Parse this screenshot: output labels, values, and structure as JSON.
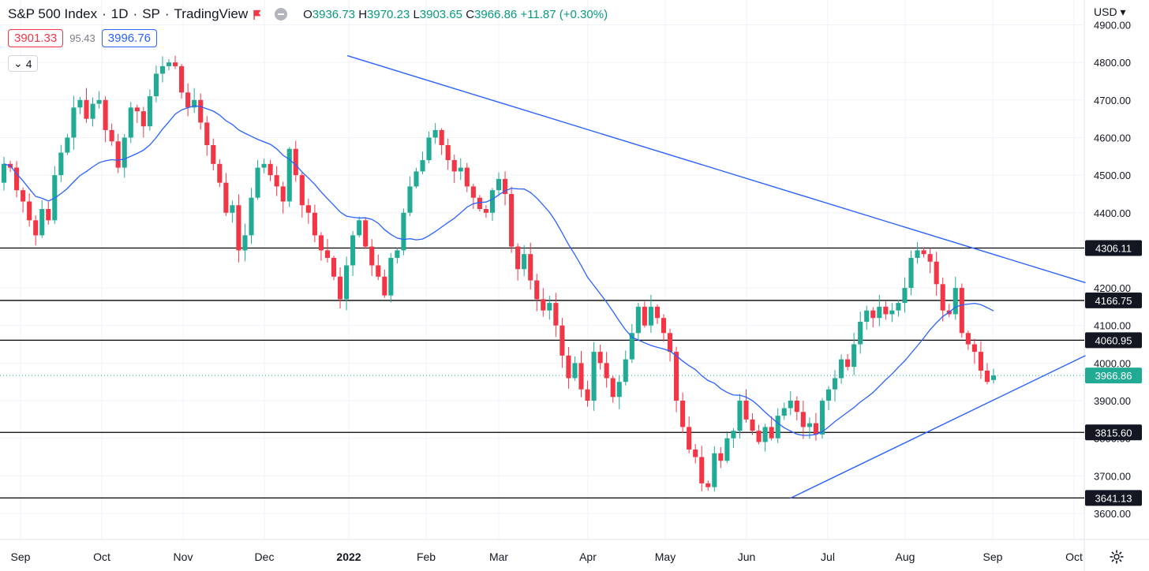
{
  "header": {
    "title": "S&P 500 Index",
    "interval": "1D",
    "exchange": "SP",
    "source": "TradingView",
    "open_label": "O",
    "open": "3936.73",
    "high_label": "H",
    "high": "3970.23",
    "low_label": "L",
    "low": "3903.65",
    "close_label": "C",
    "close": "3966.86",
    "change": "+11.87 (+0.30%)"
  },
  "quote": {
    "bid": "3901.33",
    "spread": "95.43",
    "ask": "3996.76"
  },
  "indicator_count": "4",
  "currency": "USD",
  "colors": {
    "up": "#22ab94",
    "down": "#f23645",
    "line": "#2962ff",
    "grid": "#f0f3fa"
  },
  "chart_data": {
    "type": "candlestick",
    "y_axis": {
      "range": [
        3580,
        4920
      ],
      "ticks": [
        "3600.00",
        "3700.00",
        "3800.00",
        "3900.00",
        "4000.00",
        "4100.00",
        "4200.00",
        "4300.00",
        "4400.00",
        "4500.00",
        "4600.00",
        "4700.00",
        "4800.00",
        "4900.00"
      ]
    },
    "x_axis": {
      "ticks": [
        "Sep",
        "Oct",
        "Nov",
        "Dec",
        "2022",
        "Feb",
        "Mar",
        "Apr",
        "May",
        "Jun",
        "Jul",
        "Aug",
        "Sep",
        "Oct"
      ]
    },
    "levels": [
      "4306.11",
      "4166.75",
      "4060.95",
      "3815.60",
      "3641.13"
    ],
    "last_price": "3966.86",
    "trendlines": [
      {
        "name": "resistance",
        "from": [
          "2022-01-04",
          4818
        ],
        "to": [
          "2022-10-04",
          4214
        ]
      },
      {
        "name": "support",
        "from": [
          "2022-06-17",
          3641
        ],
        "to": [
          "2022-10-04",
          4020
        ]
      }
    ],
    "series": [
      {
        "name": "",
        "kind": "ohlc-path",
        "path": [
          [
            4480,
            4530
          ],
          [
            4530,
            4520
          ],
          [
            4520,
            4460
          ],
          [
            4460,
            4430
          ],
          [
            4430,
            4380
          ],
          [
            4380,
            4340
          ],
          [
            4340,
            4410
          ],
          [
            4410,
            4380
          ],
          [
            4380,
            4500
          ],
          [
            4500,
            4560
          ],
          [
            4560,
            4600
          ],
          [
            4600,
            4680
          ],
          [
            4680,
            4700
          ],
          [
            4700,
            4650
          ],
          [
            4650,
            4690
          ],
          [
            4690,
            4700
          ],
          [
            4700,
            4620
          ],
          [
            4620,
            4590
          ],
          [
            4590,
            4520
          ],
          [
            4520,
            4600
          ],
          [
            4600,
            4680
          ],
          [
            4680,
            4670
          ],
          [
            4670,
            4630
          ],
          [
            4630,
            4710
          ],
          [
            4710,
            4770
          ],
          [
            4770,
            4790
          ],
          [
            4790,
            4800
          ],
          [
            4800,
            4790
          ],
          [
            4790,
            4720
          ],
          [
            4720,
            4680
          ],
          [
            4680,
            4700
          ],
          [
            4700,
            4640
          ],
          [
            4640,
            4580
          ],
          [
            4580,
            4530
          ],
          [
            4530,
            4480
          ],
          [
            4480,
            4400
          ],
          [
            4400,
            4420
          ],
          [
            4420,
            4300
          ],
          [
            4300,
            4340
          ],
          [
            4340,
            4440
          ],
          [
            4440,
            4520
          ],
          [
            4520,
            4530
          ],
          [
            4530,
            4500
          ],
          [
            4500,
            4470
          ],
          [
            4470,
            4430
          ],
          [
            4430,
            4570
          ],
          [
            4570,
            4500
          ],
          [
            4500,
            4420
          ],
          [
            4420,
            4400
          ],
          [
            4400,
            4340
          ],
          [
            4340,
            4300
          ],
          [
            4300,
            4280
          ],
          [
            4280,
            4230
          ],
          [
            4230,
            4170
          ],
          [
            4170,
            4260
          ],
          [
            4260,
            4340
          ],
          [
            4340,
            4380
          ],
          [
            4380,
            4310
          ],
          [
            4310,
            4260
          ],
          [
            4260,
            4230
          ],
          [
            4230,
            4180
          ],
          [
            4180,
            4280
          ],
          [
            4280,
            4300
          ],
          [
            4300,
            4400
          ],
          [
            4400,
            4470
          ],
          [
            4470,
            4510
          ],
          [
            4510,
            4540
          ],
          [
            4540,
            4600
          ],
          [
            4600,
            4620
          ],
          [
            4620,
            4580
          ],
          [
            4580,
            4540
          ],
          [
            4540,
            4510
          ],
          [
            4510,
            4520
          ],
          [
            4520,
            4470
          ],
          [
            4470,
            4440
          ],
          [
            4440,
            4410
          ],
          [
            4410,
            4400
          ],
          [
            4400,
            4460
          ],
          [
            4460,
            4490
          ],
          [
            4490,
            4450
          ],
          [
            4450,
            4310
          ],
          [
            4310,
            4250
          ],
          [
            4250,
            4290
          ],
          [
            4290,
            4220
          ],
          [
            4220,
            4170
          ],
          [
            4170,
            4140
          ],
          [
            4140,
            4160
          ],
          [
            4160,
            4100
          ],
          [
            4100,
            4020
          ],
          [
            4020,
            3960
          ],
          [
            3960,
            4000
          ],
          [
            4000,
            3930
          ],
          [
            3930,
            3900
          ],
          [
            3900,
            4030
          ],
          [
            4030,
            4000
          ],
          [
            4000,
            3960
          ],
          [
            3960,
            3910
          ],
          [
            3910,
            3950
          ],
          [
            3950,
            4010
          ],
          [
            4010,
            4080
          ],
          [
            4080,
            4150
          ],
          [
            4150,
            4100
          ],
          [
            4100,
            4150
          ],
          [
            4150,
            4120
          ],
          [
            4120,
            4080
          ],
          [
            4080,
            4030
          ],
          [
            4030,
            3900
          ],
          [
            3900,
            3830
          ],
          [
            3830,
            3770
          ],
          [
            3770,
            3750
          ],
          [
            3750,
            3680
          ],
          [
            3680,
            3670
          ],
          [
            3670,
            3760
          ],
          [
            3760,
            3740
          ],
          [
            3740,
            3800
          ],
          [
            3800,
            3820
          ],
          [
            3820,
            3900
          ],
          [
            3900,
            3850
          ],
          [
            3850,
            3820
          ],
          [
            3820,
            3790
          ],
          [
            3790,
            3830
          ],
          [
            3830,
            3800
          ],
          [
            3800,
            3860
          ],
          [
            3860,
            3880
          ],
          [
            3880,
            3900
          ],
          [
            3900,
            3870
          ],
          [
            3870,
            3830
          ],
          [
            3830,
            3840
          ],
          [
            3840,
            3810
          ],
          [
            3810,
            3900
          ],
          [
            3900,
            3930
          ],
          [
            3930,
            3960
          ],
          [
            3960,
            4010
          ],
          [
            4010,
            3990
          ],
          [
            3990,
            4050
          ],
          [
            4050,
            4110
          ],
          [
            4110,
            4140
          ],
          [
            4140,
            4120
          ],
          [
            4120,
            4150
          ],
          [
            4150,
            4130
          ],
          [
            4130,
            4140
          ],
          [
            4140,
            4160
          ],
          [
            4160,
            4200
          ],
          [
            4200,
            4280
          ],
          [
            4280,
            4300
          ],
          [
            4300,
            4290
          ],
          [
            4290,
            4270
          ],
          [
            4270,
            4210
          ],
          [
            4210,
            4140
          ],
          [
            4140,
            4130
          ],
          [
            4130,
            4200
          ],
          [
            4200,
            4080
          ],
          [
            4080,
            4050
          ],
          [
            4050,
            4030
          ],
          [
            4030,
            3980
          ],
          [
            3980,
            3950
          ],
          [
            3955,
            3967
          ]
        ]
      },
      {
        "name": "",
        "kind": "moving-average",
        "period": 20
      }
    ]
  }
}
